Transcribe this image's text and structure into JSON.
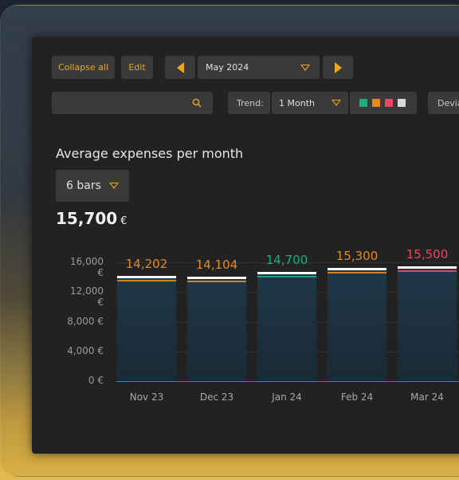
{
  "toolbar": {
    "collapse_label": "Collapse all",
    "edit_label": "Edit",
    "period": "May 2024",
    "search_placeholder": "",
    "trend_label": "Trend:",
    "trend_value": "1 Month",
    "deviation_label": "Devia"
  },
  "colors": {
    "accent": "#e9a81e",
    "swatches": [
      "#1fae7a",
      "#e58a1f",
      "#e8495f",
      "#d9d9d9"
    ]
  },
  "widget": {
    "title": "Average expenses per month",
    "bars_selector": "6 bars",
    "total_value": "15,700",
    "total_unit": "€"
  },
  "chart_data": {
    "type": "bar",
    "categories": [
      "Nov 23",
      "Dec 23",
      "Jan 24",
      "Feb 24",
      "Mar 24"
    ],
    "values": [
      14202,
      14104,
      14700,
      15300,
      15500
    ],
    "value_labels": [
      "14,202",
      "14,104",
      "14,700",
      "15,300",
      "15,500"
    ],
    "label_colors": [
      "#e58a1f",
      "#e58a1f",
      "#1fae7a",
      "#e58a1f",
      "#e8495f"
    ],
    "y_ticks": [
      "16,000 €",
      "12,000 €",
      "8,000 €",
      "4,000 €",
      "0 €"
    ],
    "ylim": [
      0,
      16000
    ]
  }
}
